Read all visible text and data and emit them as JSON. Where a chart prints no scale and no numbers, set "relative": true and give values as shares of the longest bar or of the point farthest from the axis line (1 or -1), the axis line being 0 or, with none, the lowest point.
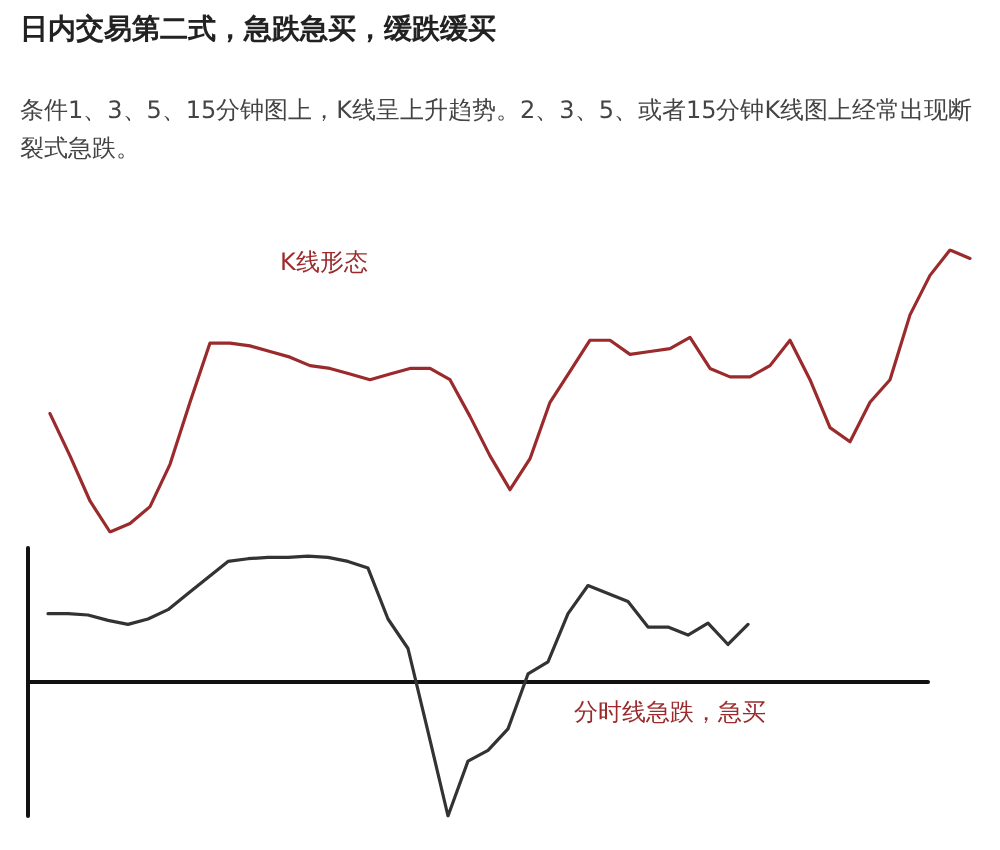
{
  "chart_data": [
    {
      "type": "line",
      "title": "日内交易第二式，急跌急买，缓跌缓买",
      "subtitle": "条件1、3、5、15分钟图上，K线呈上升趋势。2、3、5、或者15分钟K线图上经常出现断裂式急跌。",
      "relative": true,
      "annotations": [
        "K线形态"
      ],
      "marker": "none",
      "grid": false,
      "tick_labels": false,
      "categories": [
        null,
        null,
        null,
        null,
        null,
        null,
        null,
        null,
        null,
        null,
        null,
        null,
        null,
        null,
        null,
        null,
        null,
        null,
        null,
        null,
        null,
        null,
        null,
        null,
        null,
        null,
        null,
        null,
        null,
        null,
        null,
        null,
        null,
        null,
        null,
        null,
        null,
        null,
        null,
        null,
        null,
        null,
        null,
        null,
        null,
        null,
        null
      ],
      "series": [
        {
          "color": "#9b2a2c",
          "values": [
            0.42,
            0.27,
            0.11,
            0,
            0.03,
            0.09,
            0.24,
            0.46,
            0.67,
            0.67,
            0.66,
            0.64,
            0.62,
            0.59,
            0.58,
            0.56,
            0.54,
            0.56,
            0.58,
            0.58,
            0.54,
            0.41,
            0.27,
            0.15,
            0.26,
            0.46,
            0.57,
            0.68,
            0.68,
            0.63,
            0.64,
            0.65,
            0.69,
            0.58,
            0.55,
            0.55,
            0.59,
            0.68,
            0.54,
            0.37,
            0.32,
            0.46,
            0.54,
            0.77,
            0.91,
            1,
            0.97
          ]
        }
      ]
    },
    {
      "type": "line",
      "relative": true,
      "annotations": [
        "分时线急跌，急买"
      ],
      "marker": "none",
      "grid": false,
      "tick_labels": false,
      "categories": [
        null,
        null,
        null,
        null,
        null,
        null,
        null,
        null,
        null,
        null,
        null,
        null,
        null,
        null,
        null,
        null,
        null,
        null,
        null,
        null,
        null,
        null,
        null,
        null,
        null,
        null,
        null,
        null,
        null,
        null,
        null,
        null,
        null,
        null,
        null,
        null,
        null,
        null,
        null,
        null,
        null,
        null,
        null,
        null,
        null,
        null
      ],
      "series": [
        {
          "color": "#333333",
          "values": [
            null,
            0.51,
            0.51,
            0.5,
            0.46,
            0.43,
            0.47,
            0.54,
            0.66,
            0.78,
            0.9,
            0.92,
            0.93,
            0.93,
            0.94,
            0.93,
            0.9,
            0.85,
            0.47,
            0.25,
            -0.37,
            -1,
            -0.59,
            -0.51,
            -0.35,
            0.06,
            0.15,
            0.51,
            0.72,
            0.66,
            0.6,
            0.41,
            0.41,
            0.35,
            0.44,
            0.28,
            0.43,
            null,
            null,
            null,
            null,
            null,
            null,
            null,
            null,
            null
          ]
        }
      ]
    }
  ]
}
